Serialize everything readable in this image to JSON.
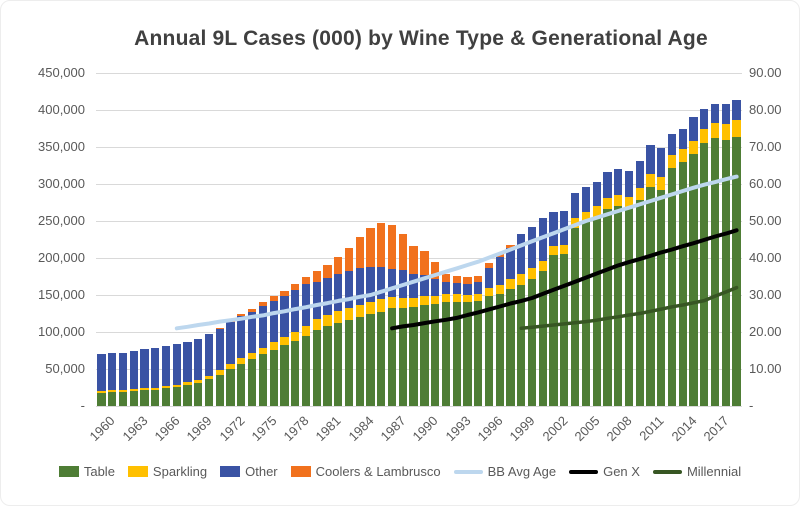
{
  "title": "Annual 9L Cases (000) by Wine Type & Generational Age",
  "left_axis": {
    "ticks": [
      "450,000",
      "400,000",
      "350,000",
      "300,000",
      "250,000",
      "200,000",
      "150,000",
      "100,000",
      "50,000",
      "-"
    ],
    "max": 450000,
    "step": 50000
  },
  "right_axis": {
    "ticks": [
      "90.00",
      "80.00",
      "70.00",
      "60.00",
      "50.00",
      "40.00",
      "30.00",
      "20.00",
      "10.00",
      "-"
    ],
    "max": 90,
    "step": 10
  },
  "legend": [
    {
      "label": "Table",
      "type": "box",
      "color": "#4e7d35"
    },
    {
      "label": "Sparkling",
      "type": "box",
      "color": "#ffc000"
    },
    {
      "label": "Other",
      "type": "box",
      "color": "#3a53a4"
    },
    {
      "label": "Coolers & Lambrusco",
      "type": "box",
      "color": "#f1711d"
    },
    {
      "label": "BB Avg Age",
      "type": "line",
      "color": "#bdd7ee"
    },
    {
      "label": "Gen X",
      "type": "line",
      "color": "#000000"
    },
    {
      "label": "Millennial",
      "type": "line",
      "color": "#375623"
    }
  ],
  "chart_data": {
    "type": "combo-stacked-bar-and-line",
    "title": "Annual 9L Cases (000) by Wine Type & Generational Age",
    "bar_axis": "left",
    "line_axis": "right",
    "left_ylim": [
      0,
      450000
    ],
    "right_ylim": [
      0,
      90
    ],
    "grid": true,
    "legend_position": "bottom",
    "years": [
      1960,
      1961,
      1962,
      1963,
      1964,
      1965,
      1966,
      1967,
      1968,
      1969,
      1970,
      1971,
      1972,
      1973,
      1974,
      1975,
      1976,
      1977,
      1978,
      1979,
      1980,
      1981,
      1982,
      1983,
      1984,
      1985,
      1986,
      1987,
      1988,
      1989,
      1990,
      1991,
      1992,
      1993,
      1994,
      1995,
      1996,
      1997,
      1998,
      1999,
      2000,
      2001,
      2002,
      2003,
      2004,
      2005,
      2006,
      2007,
      2008,
      2009,
      2010,
      2011,
      2012,
      2013,
      2014,
      2015,
      2016,
      2017,
      2018,
      2019
    ],
    "x_tick_labels": [
      "1960",
      "1963",
      "1966",
      "1969",
      "1972",
      "1975",
      "1978",
      "1981",
      "1984",
      "1987",
      "1990",
      "1993",
      "1996",
      "1999",
      "2002",
      "2005",
      "2008",
      "2011",
      "2014",
      "2017"
    ],
    "bar_unit": "thousands of 9L cases",
    "bar_series": [
      {
        "name": "Table",
        "color": "#4e7d35",
        "values": [
          18,
          19,
          19,
          20,
          21,
          22,
          24,
          26,
          28,
          31,
          36,
          42,
          50,
          57,
          63,
          70,
          76,
          82,
          88,
          95,
          103,
          108,
          112,
          116,
          120,
          124,
          127,
          132,
          133,
          134,
          137,
          138,
          140,
          141,
          140,
          142,
          149,
          152,
          158,
          164,
          172,
          182,
          204,
          206,
          240,
          248,
          256,
          266,
          270,
          268,
          278,
          296,
          292,
          322,
          330,
          340,
          355,
          362,
          360,
          364
        ]
      },
      {
        "name": "Sparkling",
        "color": "#ffc000",
        "values": [
          2,
          2,
          2,
          3,
          3,
          3,
          3,
          3,
          4,
          4,
          5,
          6,
          7,
          8,
          8,
          9,
          10,
          11,
          12,
          13,
          14,
          15,
          16,
          17,
          17,
          17,
          17,
          15,
          13,
          12,
          12,
          11,
          11,
          11,
          10,
          10,
          11,
          12,
          13,
          14,
          14,
          14,
          12,
          12,
          14,
          14,
          14,
          15,
          15,
          15,
          16,
          17,
          17,
          17,
          17,
          18,
          20,
          20,
          21,
          22
        ]
      },
      {
        "name": "Other",
        "color": "#3a53a4",
        "values": [
          50,
          51,
          51,
          52,
          53,
          54,
          54,
          55,
          55,
          56,
          57,
          57,
          56,
          56,
          56,
          56,
          56,
          56,
          57,
          57,
          51,
          50,
          50,
          50,
          49,
          47,
          44,
          38,
          38,
          32,
          28,
          22,
          16,
          14,
          15,
          16,
          26,
          37,
          43,
          55,
          56,
          58,
          46,
          46,
          34,
          34,
          33,
          35,
          35,
          35,
          37,
          40,
          39,
          28,
          27,
          32,
          26,
          26,
          27,
          27
        ]
      },
      {
        "name": "Coolers & Lambrusco",
        "color": "#f1711d",
        "values": [
          0,
          0,
          0,
          0,
          0,
          0,
          0,
          0,
          0,
          0,
          0,
          1,
          2,
          3,
          4,
          5,
          6,
          7,
          8,
          9,
          14,
          18,
          24,
          31,
          42,
          53,
          60,
          60,
          48,
          38,
          33,
          23,
          12,
          10,
          9,
          8,
          7,
          6,
          3,
          0,
          0,
          0,
          0,
          0,
          0,
          0,
          0,
          0,
          0,
          0,
          0,
          0,
          0,
          0,
          0,
          0,
          0,
          0,
          0,
          0
        ]
      }
    ],
    "line_unit": "average age (years)",
    "line_series": [
      {
        "name": "BB Avg Age",
        "color": "#bdd7ee",
        "width": 4,
        "start_year": 1967,
        "values": [
          21.0,
          21.4,
          21.9,
          22.3,
          22.8,
          23.2,
          23.6,
          24.1,
          24.5,
          25.1,
          25.6,
          26.2,
          26.7,
          27.3,
          27.8,
          28.4,
          28.9,
          29.5,
          30.0,
          30.9,
          31.8,
          32.7,
          33.6,
          34.5,
          35.4,
          36.3,
          37.2,
          38.1,
          39.0,
          40.1,
          41.2,
          42.3,
          43.4,
          44.5,
          45.6,
          46.7,
          47.8,
          48.9,
          50.0,
          50.9,
          51.8,
          52.7,
          53.6,
          54.5,
          55.4,
          56.3,
          57.2,
          58.1,
          59.0,
          59.8,
          60.5,
          61.3,
          62.0
        ]
      },
      {
        "name": "Gen X",
        "color": "#000000",
        "width": 4,
        "start_year": 1987,
        "values": [
          21.0,
          21.5,
          21.9,
          22.4,
          22.9,
          23.3,
          23.8,
          24.6,
          25.3,
          26.1,
          26.9,
          27.7,
          28.4,
          29.2,
          30.3,
          31.4,
          32.5,
          33.6,
          34.7,
          35.8,
          36.9,
          38.0,
          38.9,
          39.7,
          40.6,
          41.5,
          42.3,
          43.2,
          44.0,
          44.9,
          45.8,
          46.6,
          47.5
        ]
      },
      {
        "name": "Millennial",
        "color": "#375623",
        "width": 3.5,
        "start_year": 1999,
        "values": [
          21.0,
          21.3,
          21.6,
          21.9,
          22.2,
          22.5,
          22.8,
          23.2,
          23.7,
          24.1,
          24.6,
          25.0,
          25.6,
          26.2,
          26.8,
          27.3,
          27.9,
          28.5,
          29.7,
          30.8,
          32.0
        ]
      }
    ]
  }
}
